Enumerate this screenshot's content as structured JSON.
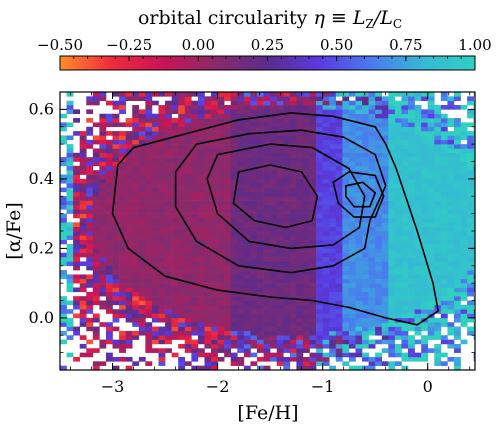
{
  "chart_data": {
    "type": "heatmap",
    "title": "",
    "xlabel": "[Fe/H]",
    "ylabel": "[α/Fe]",
    "xlim": [
      -3.5,
      0.45
    ],
    "ylim": [
      -0.15,
      0.65
    ],
    "x_ticks": [
      -3,
      -2,
      -1,
      0
    ],
    "x_tick_labels": [
      "−3",
      "−2",
      "−1",
      "0"
    ],
    "y_ticks": [
      0.0,
      0.2,
      0.4,
      0.6
    ],
    "y_tick_labels": [
      "0.0",
      "0.2",
      "0.4",
      "0.6"
    ],
    "grid": false,
    "colorbar": {
      "label_prefix": "orbital circularity ",
      "label_symbol": "η ≡ L",
      "label_sub1": "Z",
      "label_mid": "/L",
      "label_sub2": "C",
      "range": [
        -0.5,
        1.0
      ],
      "ticks": [
        -0.5,
        -0.25,
        0.0,
        0.25,
        0.5,
        0.75,
        1.0
      ],
      "tick_labels": [
        "−0.50",
        "−0.25",
        "0.00",
        "0.25",
        "0.50",
        "0.75",
        "1.00"
      ],
      "colormap": [
        "#ff8c2a",
        "#ef2a3c",
        "#c81456",
        "#8c2a6a",
        "#5a2c8c",
        "#5a3ae0",
        "#4a7aee",
        "#36b8d6",
        "#2fd0c0"
      ],
      "placement": "top"
    },
    "heatmap_regions": [
      {
        "feh_range": [
          -3.4,
          -1.9
        ],
        "eta": 0.05
      },
      {
        "feh_range": [
          -1.9,
          -1.05
        ],
        "eta": 0.18
      },
      {
        "feh_range": [
          -1.05,
          -0.8
        ],
        "eta": 0.45
      },
      {
        "feh_range": [
          -0.8,
          -0.4
        ],
        "eta": 0.68
      },
      {
        "feh_range": [
          -0.4,
          0.45
        ],
        "eta": 0.88
      }
    ],
    "contours": [
      {
        "level": 1,
        "points": [
          [
            -2.95,
            0.44
          ],
          [
            -2.8,
            0.49
          ],
          [
            -2.3,
            0.53
          ],
          [
            -1.8,
            0.57
          ],
          [
            -1.3,
            0.59
          ],
          [
            -0.9,
            0.58
          ],
          [
            -0.5,
            0.55
          ],
          [
            -0.4,
            0.5
          ],
          [
            -0.3,
            0.43
          ],
          [
            -0.1,
            0.25
          ],
          [
            0.05,
            0.1
          ],
          [
            0.1,
            0.02
          ],
          [
            -0.1,
            -0.02
          ],
          [
            -0.4,
            0.0
          ],
          [
            -0.75,
            0.03
          ],
          [
            -1.1,
            0.05
          ],
          [
            -1.5,
            0.06
          ],
          [
            -2.0,
            0.08
          ],
          [
            -2.5,
            0.12
          ],
          [
            -2.85,
            0.2
          ],
          [
            -3.0,
            0.3
          ],
          [
            -2.95,
            0.44
          ]
        ]
      },
      {
        "level": 2,
        "points": [
          [
            -2.2,
            0.5
          ],
          [
            -1.7,
            0.53
          ],
          [
            -1.2,
            0.54
          ],
          [
            -0.8,
            0.52
          ],
          [
            -0.5,
            0.47
          ],
          [
            -0.4,
            0.38
          ],
          [
            -0.55,
            0.28
          ],
          [
            -0.6,
            0.2
          ],
          [
            -0.9,
            0.15
          ],
          [
            -1.3,
            0.13
          ],
          [
            -1.8,
            0.15
          ],
          [
            -2.2,
            0.22
          ],
          [
            -2.4,
            0.32
          ],
          [
            -2.4,
            0.42
          ],
          [
            -2.2,
            0.5
          ]
        ]
      },
      {
        "level": 3,
        "points": [
          [
            -2.0,
            0.47
          ],
          [
            -1.5,
            0.5
          ],
          [
            -1.1,
            0.49
          ],
          [
            -0.75,
            0.43
          ],
          [
            -0.6,
            0.35
          ],
          [
            -0.65,
            0.26
          ],
          [
            -0.9,
            0.21
          ],
          [
            -1.3,
            0.2
          ],
          [
            -1.7,
            0.22
          ],
          [
            -2.0,
            0.3
          ],
          [
            -2.1,
            0.4
          ],
          [
            -2.0,
            0.47
          ]
        ]
      },
      {
        "level": 4,
        "points": [
          [
            -1.8,
            0.42
          ],
          [
            -1.5,
            0.44
          ],
          [
            -1.2,
            0.42
          ],
          [
            -1.05,
            0.35
          ],
          [
            -1.1,
            0.28
          ],
          [
            -1.35,
            0.26
          ],
          [
            -1.65,
            0.28
          ],
          [
            -1.85,
            0.33
          ],
          [
            -1.8,
            0.42
          ]
        ]
      },
      {
        "level": 5,
        "points": [
          [
            -0.9,
            0.39
          ],
          [
            -0.75,
            0.42
          ],
          [
            -0.5,
            0.41
          ],
          [
            -0.42,
            0.35
          ],
          [
            -0.5,
            0.29
          ],
          [
            -0.7,
            0.29
          ],
          [
            -0.85,
            0.33
          ],
          [
            -0.9,
            0.39
          ]
        ]
      },
      {
        "level": 6,
        "points": [
          [
            -0.78,
            0.38
          ],
          [
            -0.62,
            0.39
          ],
          [
            -0.5,
            0.36
          ],
          [
            -0.55,
            0.32
          ],
          [
            -0.7,
            0.32
          ],
          [
            -0.78,
            0.35
          ],
          [
            -0.78,
            0.38
          ]
        ]
      }
    ]
  }
}
